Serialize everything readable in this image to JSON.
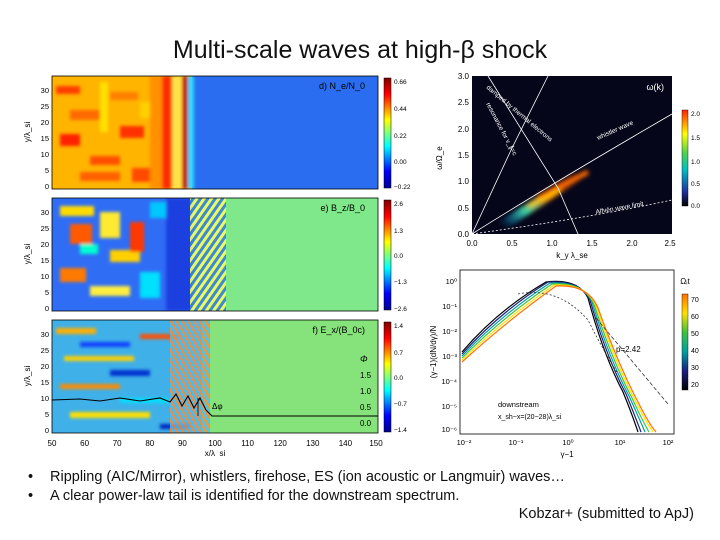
{
  "slide": {
    "title": "Multi-scale waves at high-β shock",
    "bullets": [
      "Rippling (AIC/Mirror), whistlers, firehose, ES (ion acoustic or Langmuir) waves…",
      "A clear power-law tail is identified for the downstream spectrum."
    ],
    "credit": "Kobzar+ (submitted to ApJ)"
  },
  "colors": {
    "jet_low": "#00008f",
    "jet_mid": "#7fff7f",
    "jet_high": "#800000",
    "background_field": "#1f8fff"
  },
  "left_figure": {
    "x_ticks": [
      "50",
      "60",
      "70",
      "80",
      "90",
      "100",
      "110",
      "120",
      "130",
      "140",
      "150"
    ],
    "x_label": "x/λ_si",
    "y_ticks": [
      "0",
      "5",
      "10",
      "15",
      "20",
      "25",
      "30"
    ],
    "y_label": "y/λ_si",
    "panels": [
      {
        "label": "d) N_e/N_0",
        "colorbar_ticks": [
          "0.66",
          "0.44",
          "0.22",
          "0.00",
          "−0.22"
        ]
      },
      {
        "label": "e) B_z/B_0",
        "colorbar_ticks": [
          "2.6",
          "1.3",
          "0.0",
          "−1.3",
          "−2.6"
        ]
      },
      {
        "label": "f) E_x/(B_0c)",
        "colorbar_ticks": [
          "1.4",
          "0.7",
          "0.0",
          "−0.7",
          "−1.4"
        ]
      }
    ],
    "phi_legend": {
      "title": "Φ",
      "ticks": [
        "1.5",
        "1.0",
        "0.5",
        "0.0"
      ],
      "delta_label": "Δφ"
    }
  },
  "dispersion_plot": {
    "panel_label": "ω(k)",
    "x_ticks": [
      "0.0",
      "0.5",
      "1.0",
      "1.5",
      "2.0",
      "2.5"
    ],
    "x_label": "k_y λ_se",
    "y_ticks": [
      "0.0",
      "0.5",
      "1.0",
      "1.5",
      "2.0",
      "2.5",
      "3.0"
    ],
    "y_label": "ω/Ω_e",
    "annotations": [
      "damped by thermal electrons",
      "resonance for v_∥=c",
      "whistler wave",
      "Alfvén wave limit"
    ],
    "colorbar_ticks": [
      "2.0",
      "1.5",
      "1.0",
      "0.5",
      "0.0"
    ]
  },
  "spectrum_plot": {
    "x_label": "γ−1",
    "x_ticks": [
      "10⁻²",
      "10⁻¹",
      "10⁰",
      "10¹",
      "10²"
    ],
    "y_label": "(γ−1)(dN/dγ)/N",
    "y_ticks": [
      "10⁰",
      "10⁻¹",
      "10⁻²",
      "10⁻³",
      "10⁻⁴",
      "10⁻⁵",
      "10⁻⁶"
    ],
    "power_law_label": "p=2.42",
    "legend_lines": [
      "downstream",
      "x_sh−x=(20−28)λ_si"
    ],
    "colorbar_title": "Ωᵢt",
    "colorbar_ticks": [
      "70",
      "60",
      "50",
      "40",
      "30",
      "20"
    ]
  }
}
